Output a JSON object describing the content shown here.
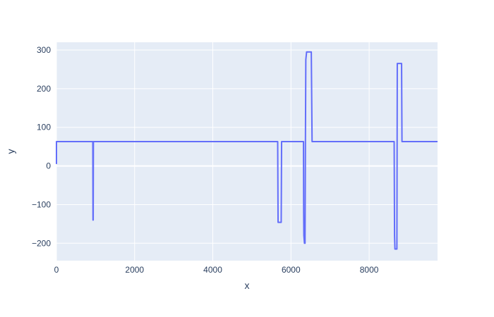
{
  "chart_data": {
    "type": "line",
    "title": "",
    "xlabel": "x",
    "ylabel": "y",
    "xlim": [
      0,
      9750
    ],
    "ylim": [
      -245,
      320
    ],
    "grid": true,
    "x_ticks": [
      0,
      2000,
      4000,
      6000,
      8000
    ],
    "x_tick_labels": [
      "0",
      "2000",
      "4000",
      "6000",
      "8000"
    ],
    "y_ticks": [
      -200,
      -100,
      0,
      100,
      200,
      300
    ],
    "y_tick_labels": [
      "−200",
      "−100",
      "0",
      "100",
      "200",
      "300"
    ],
    "colors": {
      "plot_bg": "#e5ecf6",
      "grid": "#ffffff",
      "line": "#636efa",
      "text": "#2a3f5f"
    },
    "series": [
      {
        "x": [
          0,
          0,
          930,
          935,
          940,
          945,
          5650,
          5660,
          5670,
          5750,
          5760,
          5770,
          6320,
          6325,
          6330,
          6345,
          6360,
          6370,
          6380,
          6400,
          6410,
          6420,
          6520,
          6540,
          6560,
          8640,
          8650,
          8660,
          8670,
          8710,
          8720,
          8730,
          8830,
          8840,
          8850,
          9750
        ],
        "y": [
          5,
          63,
          63,
          -140,
          -140,
          63,
          63,
          63,
          -146,
          -146,
          63,
          63,
          63,
          -120,
          -180,
          -200,
          -200,
          63,
          275,
          295,
          295,
          295,
          295,
          63,
          63,
          63,
          -180,
          -215,
          -215,
          -215,
          265,
          265,
          265,
          63,
          63,
          63
        ]
      }
    ]
  }
}
